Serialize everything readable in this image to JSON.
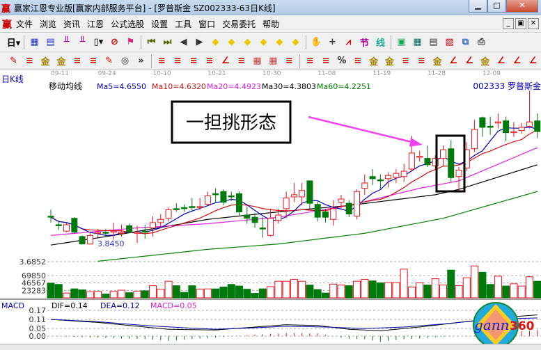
{
  "window": {
    "title": "赢家江恩专业版[赢家内部服务平台] - [罗普斯金  SZ002333-63日K线]",
    "logo": "赢"
  },
  "menu": [
    "文件",
    "浏览",
    "资讯",
    "江恩",
    "公式选股",
    "设置",
    "工具",
    "窗口",
    "交易委托",
    "帮助"
  ],
  "toolbar1": [
    "period-day-dropdown",
    "sep",
    "window-icon",
    "notes-icon",
    "bars3-icon",
    "bars9-icon",
    "candle-dropdown",
    "ban-icon",
    "flag-icon",
    "sep",
    "first-icon",
    "last-icon",
    "left-icon",
    "right-icon",
    "diamond-left-icon",
    "diamond-right-icon",
    "diamond-expand-icon",
    "diamond-shrink-icon",
    "diamond-up-icon",
    "diamond-down-icon",
    "sep",
    "hand-icon",
    "crosshair-icon",
    "trend-icon",
    "section-icon",
    "formula-icon",
    "sep",
    "calendar-icon",
    "calculator-icon",
    "notebook-icon",
    "save-icon",
    "network-icon",
    "print-icon"
  ],
  "toolbar2": [
    "draw-pen-icon",
    "parallel-icon",
    "gold1-icon",
    "gold2-icon",
    "fan-icon",
    "spiral-icon",
    "pen-icon",
    "circle-icon",
    "more-icon",
    "sep",
    "box-icon",
    "gann-fan-icon",
    "gann-box-icon",
    "gann-square-icon",
    "angle-icon",
    "zigzag-icon",
    "grid1-icon",
    "grid2-icon",
    "lines-icon",
    "sep",
    "ruler-icon",
    "percent-line-icon",
    "percent-icon",
    "percent-lines-icon",
    "gold-circle-icon",
    "gold-lines-icon",
    "pencil-icon",
    "wave-icon",
    "gold-bar-icon",
    "j-angle-icon",
    "f-angle-icon",
    "gold-angle-icon",
    "shen-angle-icon",
    "ying-angle-icon",
    "si-angle-icon"
  ],
  "header": {
    "period_label": "日K线",
    "ma_label": "移动均线",
    "ma5": "Ma5=4.6550",
    "ma10": "Ma10=4.6320",
    "ma20": "Ma20=4.4923",
    "ma30": "Ma30=4.3803",
    "ma60": "Ma60=4.2251",
    "stock": "002333  罗普斯金"
  },
  "annotation": {
    "text": "一担挑形态",
    "low_label": "3.8450"
  },
  "colors": {
    "up": "#e8141c",
    "down": "#007a0c",
    "ma5": "#0000c0",
    "ma10": "#d01010",
    "ma20": "#e020e0",
    "ma30": "#000000",
    "ma60": "#008000",
    "arrow": "#ee44ee"
  },
  "chart_data": [
    {
      "type": "candlestick",
      "dates": [
        "09-11",
        "09-24",
        "10-10",
        "10-21",
        "10-30",
        "11-08",
        "11-19",
        "11-28",
        "12-09"
      ],
      "date_indices": [
        0,
        6,
        13,
        20,
        27,
        34,
        41,
        48,
        55
      ],
      "yaxis_label": "3.6852",
      "ymin": 3.6852,
      "ohlc": [
        [
          4.11,
          4.17,
          4.05,
          4.1
        ],
        [
          4.03,
          4.07,
          3.98,
          4.02
        ],
        [
          3.97,
          4.05,
          3.96,
          4.03
        ],
        [
          4.09,
          4.1,
          3.95,
          3.96
        ],
        [
          3.92,
          3.93,
          3.845,
          3.85
        ],
        [
          3.85,
          3.95,
          3.845,
          3.93
        ],
        [
          3.95,
          3.99,
          3.91,
          3.96
        ],
        [
          3.96,
          3.99,
          3.92,
          3.95
        ],
        [
          3.96,
          4.05,
          3.89,
          3.97
        ],
        [
          3.95,
          4.03,
          3.92,
          3.96
        ],
        [
          4.02,
          4.04,
          3.95,
          3.96
        ],
        [
          3.95,
          4.02,
          3.86,
          3.96
        ],
        [
          3.97,
          4.03,
          3.9,
          3.96
        ],
        [
          4.0,
          4.11,
          3.92,
          4.05
        ],
        [
          4.05,
          4.13,
          4.0,
          4.08
        ],
        [
          4.09,
          4.19,
          4.06,
          4.17
        ],
        [
          4.18,
          4.23,
          4.15,
          4.17
        ],
        [
          4.19,
          4.22,
          4.15,
          4.18
        ],
        [
          4.2,
          4.28,
          4.15,
          4.19
        ],
        [
          4.19,
          4.28,
          4.17,
          4.2
        ],
        [
          4.22,
          4.34,
          4.21,
          4.3
        ],
        [
          4.32,
          4.37,
          4.24,
          4.31
        ],
        [
          4.34,
          4.36,
          4.21,
          4.24
        ],
        [
          4.3,
          4.34,
          4.25,
          4.29
        ],
        [
          4.32,
          4.34,
          4.11,
          4.15
        ],
        [
          4.12,
          4.2,
          4.04,
          4.09
        ],
        [
          4.1,
          4.14,
          4.0,
          4.05
        ],
        [
          4.0,
          4.1,
          3.91,
          3.99
        ],
        [
          3.93,
          4.18,
          3.92,
          4.09
        ],
        [
          4.07,
          4.18,
          4.04,
          4.12
        ],
        [
          4.18,
          4.34,
          4.09,
          4.28
        ],
        [
          4.29,
          4.42,
          4.24,
          4.31
        ],
        [
          4.29,
          4.42,
          4.21,
          4.35
        ],
        [
          4.44,
          4.44,
          4.18,
          4.23
        ],
        [
          4.22,
          4.25,
          4.06,
          4.1
        ],
        [
          4.15,
          4.18,
          4.05,
          4.1
        ],
        [
          4.08,
          4.26,
          4.02,
          4.18
        ],
        [
          4.24,
          4.31,
          4.18,
          4.27
        ],
        [
          4.23,
          4.26,
          4.1,
          4.13
        ],
        [
          4.11,
          4.36,
          4.08,
          4.34
        ],
        [
          4.37,
          4.5,
          4.31,
          4.42
        ],
        [
          4.48,
          4.55,
          4.4,
          4.46
        ],
        [
          4.45,
          4.5,
          4.36,
          4.44
        ],
        [
          4.46,
          4.52,
          4.38,
          4.49
        ],
        [
          4.47,
          4.55,
          4.42,
          4.51
        ],
        [
          4.48,
          4.6,
          4.43,
          4.53
        ],
        [
          4.55,
          4.86,
          4.53,
          4.7
        ],
        [
          4.66,
          4.72,
          4.62,
          4.67
        ],
        [
          4.65,
          4.77,
          4.57,
          4.59
        ],
        [
          4.58,
          4.68,
          4.55,
          4.65
        ],
        [
          4.65,
          4.77,
          4.58,
          4.73
        ],
        [
          4.74,
          4.82,
          4.43,
          4.47
        ],
        [
          4.48,
          4.57,
          4.33,
          4.54
        ],
        [
          4.56,
          4.8,
          4.53,
          4.73
        ],
        [
          4.74,
          5.01,
          4.71,
          4.92
        ],
        [
          5.03,
          5.04,
          4.85,
          4.94
        ],
        [
          4.95,
          5.04,
          4.87,
          4.94
        ],
        [
          4.98,
          5.07,
          4.93,
          4.99
        ],
        [
          5.0,
          5.04,
          4.81,
          4.89
        ],
        [
          4.89,
          4.99,
          4.85,
          4.9
        ],
        [
          4.91,
          4.98,
          4.88,
          4.94
        ],
        [
          4.95,
          5.28,
          4.93,
          4.99
        ],
        [
          5.0,
          5.07,
          4.84,
          4.9
        ]
      ],
      "ma20": [
        [
          0,
          3.93
        ],
        [
          11,
          4.0
        ],
        [
          20,
          4.04
        ],
        [
          29,
          4.1
        ],
        [
          38,
          4.21
        ],
        [
          47,
          4.37
        ],
        [
          52,
          4.44
        ],
        [
          62,
          4.75
        ]
      ],
      "ma30": [
        [
          0,
          3.84
        ],
        [
          8,
          3.93
        ],
        [
          20,
          4.08
        ],
        [
          29,
          4.15
        ],
        [
          38,
          4.21
        ],
        [
          49,
          4.31
        ],
        [
          52,
          4.36
        ],
        [
          62,
          4.59
        ]
      ],
      "ma60": [
        [
          5.5,
          3.685
        ],
        [
          20,
          3.8
        ],
        [
          29,
          3.85
        ],
        [
          40,
          3.95
        ],
        [
          50,
          4.09
        ],
        [
          62,
          4.34
        ]
      ]
    },
    {
      "type": "bar",
      "name": "volume",
      "ticks": [
        69850,
        46567,
        23283
      ],
      "values": [
        46000,
        42000,
        15000,
        28000,
        25000,
        19000,
        20000,
        12000,
        20000,
        24000,
        16000,
        21000,
        22000,
        38000,
        27000,
        52000,
        38000,
        17000,
        38000,
        27000,
        28000,
        28000,
        34000,
        42000,
        37000,
        27000,
        14000,
        28000,
        35000,
        52000,
        52000,
        58000,
        52000,
        40000,
        26000,
        15000,
        43000,
        40000,
        38000,
        52000,
        58000,
        53000,
        47000,
        48000,
        48000,
        90000,
        34000,
        47000,
        40000,
        60000,
        40000,
        87000,
        38000,
        63000,
        100000,
        80000,
        42000,
        68000,
        37000,
        44000,
        37000,
        66000,
        52000
      ]
    },
    {
      "type": "line",
      "name": "MACD",
      "label": "MACD",
      "dif_label": "DIF=0.14",
      "dea_label": "DEA=0.12",
      "macd_label": "MACD=0.05",
      "ticks": [
        0.17,
        0.11,
        0.05,
        0.0
      ],
      "dif": [
        [
          0,
          0.11
        ],
        [
          6,
          0.09
        ],
        [
          11,
          0.065
        ],
        [
          15,
          0.045
        ],
        [
          21,
          0.04
        ],
        [
          26,
          0.06
        ],
        [
          30,
          0.075
        ],
        [
          34,
          0.07
        ],
        [
          38,
          0.045
        ],
        [
          42,
          0.035
        ],
        [
          47,
          0.06
        ],
        [
          52,
          0.09
        ],
        [
          57,
          0.12
        ],
        [
          62,
          0.14
        ]
      ],
      "dea": [
        [
          0,
          0.11
        ],
        [
          6,
          0.095
        ],
        [
          12,
          0.07
        ],
        [
          17,
          0.055
        ],
        [
          21,
          0.045
        ],
        [
          26,
          0.055
        ],
        [
          30,
          0.065
        ],
        [
          35,
          0.06
        ],
        [
          40,
          0.05
        ],
        [
          45,
          0.06
        ],
        [
          50,
          0.08
        ],
        [
          56,
          0.11
        ],
        [
          62,
          0.12
        ]
      ]
    }
  ]
}
